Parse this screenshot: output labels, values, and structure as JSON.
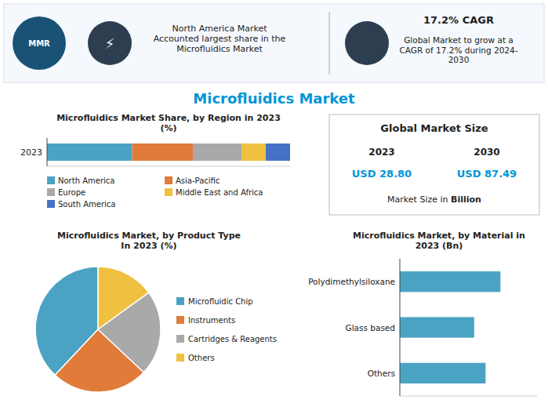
{
  "title": "Microfluidics Market",
  "annotations": [
    "MMR",
    "⚡",
    "North America Market\nAccounted largest share in the\nMicrofluidics Market",
    "17.2% CAGR",
    "Global Market to grow at a\nCAGR of 17.2% during 2024-\n2030",
    "Global Market Size",
    "2023",
    "2030",
    "USD 28.80",
    "USD 87.49",
    "Market Size in ",
    "Billion"
  ],
  "chart_data": [
    {
      "type": "bar",
      "orientation": "horizontal",
      "stacked": true,
      "title": "Microfluidics Market Share, by Region in 2023\n(%)",
      "categories": [
        "2023"
      ],
      "series": [
        {
          "name": "North America",
          "color": "#4BA3C3",
          "values": [
            35
          ]
        },
        {
          "name": "Asia-Pacific",
          "color": "#E07B39",
          "values": [
            25
          ]
        },
        {
          "name": "Europe",
          "color": "#A9A9A9",
          "values": [
            20
          ]
        },
        {
          "name": "Middle East and Africa",
          "color": "#F0C040",
          "values": [
            10
          ]
        },
        {
          "name": "South America",
          "color": "#4472C4",
          "values": [
            10
          ]
        }
      ],
      "xlim": [
        0,
        100
      ],
      "tick_labels": "y",
      "legend": "bottom"
    },
    {
      "type": "pie",
      "title": "Microfluidics Market, by Product Type\nIn 2023 (%)",
      "categories": [
        "Microfluidic Chip",
        "Instruments",
        "Cartridges & Reagents",
        "Others"
      ],
      "values": [
        38,
        25,
        22,
        15
      ],
      "colors": [
        "#4BA3C3",
        "#E07B39",
        "#A9A9A9",
        "#F0C040"
      ],
      "legend": "right"
    },
    {
      "type": "bar",
      "orientation": "horizontal",
      "title": "Microfluidics Market, by Material in\n2023 (Bn)",
      "categories": [
        "Others",
        "Glass based",
        "Polydimethylsiloxane"
      ],
      "values": [
        7.5,
        6.5,
        8.8
      ],
      "color": "#4BA3C3",
      "xlim": [
        0,
        12
      ],
      "tick_labels": "y"
    }
  ]
}
